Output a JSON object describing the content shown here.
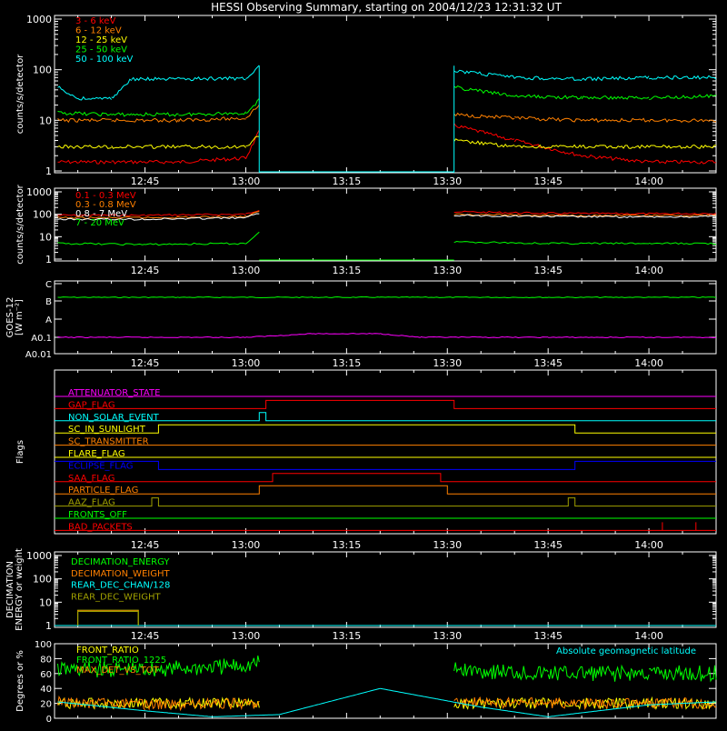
{
  "title": "HESSI Observing Summary, starting on 2004/12/23 12:31:32 UT",
  "time_ticks": [
    "12:45",
    "13:00",
    "13:15",
    "13:30",
    "13:45",
    "14:00"
  ],
  "colors": {
    "red": "#ff0000",
    "orange": "#ff8000",
    "yellow": "#ffff00",
    "green": "#00ff00",
    "cyan": "#00ffff",
    "magenta": "#ff00ff",
    "blue": "#0000ff",
    "olive": "#a0a000",
    "gray": "#c0c0c0",
    "white": "#ffffff"
  },
  "chart_data": [
    {
      "type": "line",
      "id": "lowE",
      "ylabel": "counts/s/detector",
      "yscale": "log",
      "ylim": [
        1,
        1000
      ],
      "ytick_labels": [
        "1",
        "10",
        "100",
        "1000"
      ],
      "xlim": [
        "12:31:32",
        "14:10:00"
      ],
      "series": [
        {
          "name": "3 - 6 keV",
          "color": "#ff0000",
          "values": {
            "x": [
              "12:32",
              "12:40",
              "12:50",
              "13:00",
              "13:02",
              "13:31",
              "13:40",
              "13:50",
              "14:00",
              "14:10"
            ],
            "y": [
              1.5,
              1.5,
              1.5,
              1.8,
              6,
              8,
              4,
              2,
              1.5,
              1.5
            ]
          }
        },
        {
          "name": "6 - 12 keV",
          "color": "#ff8000",
          "values": {
            "x": [
              "12:32",
              "12:40",
              "12:50",
              "13:00",
              "13:02",
              "13:31",
              "13:40",
              "13:50",
              "14:00",
              "14:10"
            ],
            "y": [
              10,
              10,
              10,
              11,
              20,
              13,
              11,
              10,
              10,
              10
            ]
          }
        },
        {
          "name": "12 - 25 keV",
          "color": "#ffff00",
          "values": {
            "x": [
              "12:32",
              "12:40",
              "12:50",
              "13:00",
              "13:02",
              "13:31",
              "13:40",
              "13:50",
              "14:00",
              "14:10"
            ],
            "y": [
              3,
              3,
              3,
              3,
              5,
              4,
              3,
              3,
              3,
              3
            ]
          }
        },
        {
          "name": "25 - 50 keV",
          "color": "#00ff00",
          "values": {
            "x": [
              "12:32",
              "12:40",
              "12:43",
              "12:50",
              "13:00",
              "13:02",
              "13:31",
              "13:40",
              "13:50",
              "14:00",
              "14:10"
            ],
            "y": [
              14,
              13,
              13,
              13,
              14,
              25,
              45,
              30,
              28,
              28,
              30
            ]
          }
        },
        {
          "name": "50 - 100 keV",
          "color": "#00ffff",
          "values": {
            "x": [
              "12:32",
              "12:35",
              "12:40",
              "12:43",
              "12:50",
              "13:00",
              "13:02",
              "13:31",
              "13:40",
              "13:50",
              "14:00",
              "14:10"
            ],
            "y": [
              45,
              27,
              27,
              65,
              65,
              68,
              120,
              95,
              70,
              65,
              70,
              70
            ]
          }
        }
      ]
    },
    {
      "type": "line",
      "id": "highE",
      "ylabel": "counts/s/detector",
      "yscale": "log",
      "ylim": [
        1,
        1000
      ],
      "ytick_labels": [
        "1",
        "10",
        "100",
        "1000"
      ],
      "series": [
        {
          "name": "0.1 - 0.3 MeV",
          "color": "#ff0000",
          "values": {
            "x": [
              "12:32",
              "12:45",
              "13:00",
              "13:02",
              "13:31",
              "13:45",
              "14:00",
              "14:10"
            ],
            "y": [
              90,
              90,
              100,
              160,
              130,
              110,
              105,
              110
            ]
          }
        },
        {
          "name": "0.3 - 0.8 MeV",
          "color": "#ff8000",
          "values": {
            "x": [
              "12:32",
              "12:45",
              "13:00",
              "13:02",
              "13:31",
              "13:45",
              "14:00",
              "14:10"
            ],
            "y": [
              70,
              70,
              80,
              130,
              100,
              90,
              85,
              90
            ]
          }
        },
        {
          "name": "0.8 - 7 MeV",
          "color": "#ffffff",
          "values": {
            "x": [
              "12:32",
              "12:45",
              "13:00",
              "13:02",
              "13:31",
              "13:45",
              "14:00",
              "14:10"
            ],
            "y": [
              60,
              60,
              70,
              110,
              90,
              80,
              75,
              80
            ]
          }
        },
        {
          "name": "7 - 20 MeV",
          "color": "#00ff00",
          "values": {
            "x": [
              "12:32",
              "12:45",
              "13:00",
              "13:02",
              "13:31",
              "13:45",
              "14:00",
              "14:10"
            ],
            "y": [
              5,
              4.5,
              5,
              15,
              6,
              5,
              5,
              5
            ]
          }
        }
      ]
    },
    {
      "type": "line",
      "id": "goes",
      "ylabel_lines": [
        "GOES-12",
        "[W m⁻²]"
      ],
      "yscale": "log",
      "ytick_labels": [
        "A0.01",
        "A0.1",
        "A",
        "B",
        "C"
      ],
      "series": [
        {
          "name": "GOES long",
          "color": "#00ff00",
          "values": {
            "x": [
              "12:32",
              "12:50",
              "13:10",
              "13:20",
              "13:30",
              "13:45",
              "14:00",
              "14:10"
            ],
            "y": [
              "B",
              "B",
              "B+",
              "B+",
              "B",
              "B",
              "B",
              "B"
            ]
          }
        },
        {
          "name": "GOES short",
          "color": "#ff00ff",
          "values": {
            "x": [
              "12:32",
              "13:00",
              "13:10",
              "13:20",
              "13:26",
              "13:45",
              "14:10"
            ],
            "y": [
              "A0.1",
              "A0.1",
              "A0.1+",
              "A0.1+",
              "A0.1",
              "A0.1",
              "A0.1"
            ]
          }
        }
      ]
    },
    {
      "type": "line",
      "id": "flags",
      "ylabel": "Flags",
      "series": [
        {
          "name": "ATTENUATOR_STATE",
          "color": "#ff00ff",
          "values": {
            "x": [
              "12:31:32",
              "14:10"
            ],
            "y": [
              0,
              0
            ]
          }
        },
        {
          "name": "GAP_FLAG",
          "color": "#ff0000",
          "values": {
            "x": [
              "12:31:32",
              "13:03",
              "13:03",
              "13:31",
              "13:31",
              "14:10"
            ],
            "y": [
              0,
              0,
              1,
              1,
              0,
              0
            ]
          }
        },
        {
          "name": "NON_SOLAR_EVENT",
          "color": "#00ffff",
          "values": {
            "x": [
              "12:31:32",
              "13:02",
              "13:02",
              "13:03",
              "13:03",
              "14:10"
            ],
            "y": [
              0,
              0,
              1,
              1,
              0,
              0
            ]
          }
        },
        {
          "name": "SC_IN_SUNLIGHT",
          "color": "#ffff00",
          "values": {
            "x": [
              "12:31:32",
              "12:47",
              "12:47",
              "13:49",
              "13:49",
              "14:10"
            ],
            "y": [
              0,
              0,
              1,
              1,
              0,
              0
            ]
          }
        },
        {
          "name": "SC_TRANSMITTER",
          "color": "#ff8000",
          "values": {
            "x": [
              "12:31:32",
              "14:10"
            ],
            "y": [
              0,
              0
            ]
          }
        },
        {
          "name": "FLARE_FLAG",
          "color": "#ffff00",
          "values": {
            "x": [
              "12:31:32",
              "14:10"
            ],
            "y": [
              0,
              0
            ]
          }
        },
        {
          "name": "ECLIPSE_FLAG",
          "color": "#0000ff",
          "values": {
            "x": [
              "12:31:32",
              "12:47",
              "12:47",
              "13:49",
              "13:49",
              "14:10"
            ],
            "y": [
              1,
              1,
              0,
              0,
              1,
              1
            ]
          }
        },
        {
          "name": "SAA_FLAG",
          "color": "#ff0000",
          "values": {
            "x": [
              "12:31:32",
              "13:04",
              "13:04",
              "13:29",
              "13:29",
              "14:10"
            ],
            "y": [
              0,
              0,
              1,
              1,
              0,
              0
            ]
          }
        },
        {
          "name": "PARTICLE_FLAG",
          "color": "#ff8000",
          "values": {
            "x": [
              "12:31:32",
              "13:02",
              "13:02",
              "13:30",
              "13:30",
              "14:10"
            ],
            "y": [
              0,
              0,
              1,
              1,
              0,
              0
            ]
          }
        },
        {
          "name": "AAZ_FLAG",
          "color": "#a0a000",
          "values": {
            "x": [
              "12:31:32",
              "12:46",
              "12:46",
              "12:47",
              "12:47",
              "13:48",
              "13:48",
              "13:49",
              "13:49",
              "14:10"
            ],
            "y": [
              0,
              0,
              1,
              1,
              0,
              0,
              1,
              1,
              0,
              0
            ]
          }
        },
        {
          "name": "FRONTS_OFF",
          "color": "#00ff00",
          "values": {
            "x": [
              "12:31:32",
              "14:10"
            ],
            "y": [
              0,
              0
            ]
          }
        },
        {
          "name": "BAD_PACKETS",
          "color": "#ff0000",
          "values": {
            "x": [
              "12:31:32",
              "14:02",
              "14:02",
              "14:02",
              "14:07",
              "14:07",
              "14:07",
              "14:10"
            ],
            "y": [
              0,
              0,
              1,
              0,
              0,
              1,
              0,
              0
            ]
          }
        }
      ]
    },
    {
      "type": "line",
      "id": "decim",
      "ylabel_lines": [
        "DECIMATION",
        "ENERGY or weight"
      ],
      "yscale": "log",
      "ylim": [
        1,
        1000
      ],
      "ytick_labels": [
        "1",
        "10",
        "100",
        "1000"
      ],
      "series": [
        {
          "name": "DECIMATION_ENERGY",
          "color": "#00ff00",
          "values": {
            "x": [
              "12:35",
              "12:35",
              "12:44",
              "12:44"
            ],
            "y": [
              1,
              4.5,
              4.5,
              1
            ]
          }
        },
        {
          "name": "DECIMATION_WEIGHT",
          "color": "#ff8000",
          "values": {
            "x": [
              "12:35",
              "12:35",
              "12:44",
              "12:44"
            ],
            "y": [
              1,
              4.5,
              4.5,
              1
            ]
          }
        },
        {
          "name": "REAR_DEC_CHAN/128",
          "color": "#00ffff",
          "values": {
            "x": [
              "12:31:32",
              "14:10"
            ],
            "y": [
              1,
              1
            ]
          }
        },
        {
          "name": "REAR_DEC_WEIGHT",
          "color": "#a0a000",
          "values": {
            "x": [
              "12:35",
              "12:35",
              "12:44",
              "12:44"
            ],
            "y": [
              1,
              4,
              4,
              1
            ]
          }
        }
      ]
    },
    {
      "type": "line",
      "id": "ratio",
      "ylabel": "Degrees or %",
      "ylim": [
        0,
        100
      ],
      "ytick_labels": [
        "0",
        "20",
        "40",
        "60",
        "80",
        "100"
      ],
      "annotation": "Absolute geomagnetic latitude",
      "series": [
        {
          "name": "FRONT_RATIO",
          "color": "#ffff00",
          "values": {
            "x": [
              "12:32",
              "13:02",
              "13:31",
              "14:10"
            ],
            "y": [
              20,
              20,
              20,
              20
            ]
          }
        },
        {
          "name": "FRONT_RATIO_1225",
          "color": "#00ff00",
          "values": {
            "x": [
              "12:32",
              "12:45",
              "13:00",
              "13:02",
              "13:31",
              "13:45",
              "14:00",
              "14:10"
            ],
            "y": [
              65,
              65,
              70,
              75,
              65,
              60,
              60,
              60
            ]
          }
        },
        {
          "name": "MAX_DET_VS_TOT",
          "color": "#ff8000",
          "values": {
            "x": [
              "12:32",
              "12:45",
              "13:02",
              "13:31",
              "13:45",
              "14:10"
            ],
            "y": [
              22,
              18,
              20,
              22,
              20,
              20
            ]
          }
        },
        {
          "name": "Absolute geomagnetic latitude",
          "color": "#00ffff",
          "values": {
            "x": [
              "12:32",
              "12:45",
              "12:55",
              "13:05",
              "13:20",
              "13:35",
              "13:45",
              "14:00",
              "14:10"
            ],
            "y": [
              22,
              10,
              2,
              5,
              40,
              15,
              2,
              18,
              22
            ]
          }
        }
      ]
    }
  ]
}
